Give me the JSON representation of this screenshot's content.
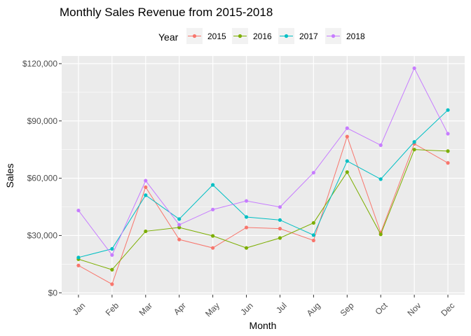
{
  "chart_data": {
    "type": "line",
    "title": "Monthly Sales Revenue from 2015-2018",
    "xlabel": "Month",
    "ylabel": "Sales",
    "categories": [
      "Jan",
      "Feb",
      "Mar",
      "Apr",
      "May",
      "Jun",
      "Jul",
      "Aug",
      "Sep",
      "Oct",
      "Nov",
      "Dec"
    ],
    "ylim": [
      -1000,
      124000
    ],
    "yticks": [
      0,
      30000,
      60000,
      90000,
      120000
    ],
    "ytick_labels": [
      "$0",
      "$30,000",
      "$60,000",
      "$90,000",
      "$120,000"
    ],
    "grid": true,
    "legend": {
      "title": "Year",
      "position": "top"
    },
    "series": [
      {
        "name": "2015",
        "color": "#F8766D",
        "values": [
          14300,
          4500,
          55300,
          27900,
          23500,
          34200,
          33600,
          27400,
          81800,
          31500,
          78000,
          68000
        ]
      },
      {
        "name": "2016",
        "color": "#7CAE00",
        "values": [
          17600,
          12100,
          32200,
          34200,
          29800,
          23500,
          28700,
          36600,
          63200,
          30600,
          75000,
          74200
        ]
      },
      {
        "name": "2017",
        "color": "#00BFC4",
        "values": [
          18500,
          23000,
          51100,
          38600,
          56500,
          39700,
          38100,
          30200,
          69000,
          59500,
          79000,
          95700
        ]
      },
      {
        "name": "2018",
        "color": "#C77CFF",
        "values": [
          43100,
          19800,
          58700,
          35600,
          43600,
          48100,
          44900,
          62900,
          86200,
          77300,
          117600,
          83300
        ]
      }
    ]
  }
}
